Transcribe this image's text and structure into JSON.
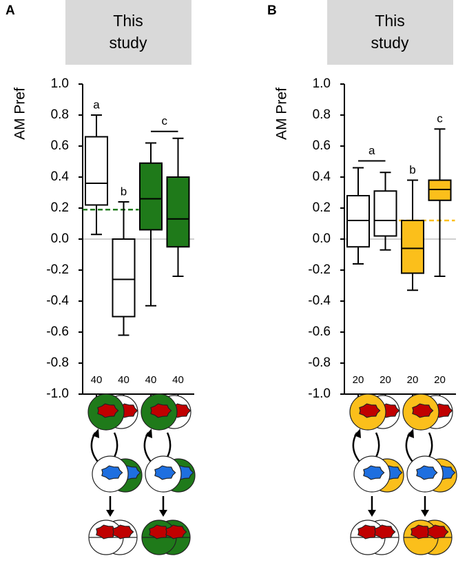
{
  "chart_data": [
    {
      "type": "box",
      "panel_label": "A",
      "header": "This study",
      "ylabel": "AM Pref",
      "ylim": [
        -1.0,
        1.0
      ],
      "yticks": [
        {
          "value": 1.0,
          "label": "1.0"
        },
        0.8,
        0.6,
        0.4,
        0.2,
        {
          "value": 0.0,
          "label": "0.0"
        },
        -0.2,
        -0.4,
        -0.6,
        -0.8,
        {
          "value": -1.0,
          "label": "-1.0"
        }
      ],
      "boxes": [
        {
          "color": "#ffffff",
          "whisker_low": 0.03,
          "q1": 0.22,
          "median": 0.36,
          "q3": 0.66,
          "whisker_high": 0.8,
          "n": 40
        },
        {
          "color": "#ffffff",
          "whisker_low": -0.62,
          "q1": -0.5,
          "median": -0.26,
          "q3": 0.0,
          "whisker_high": 0.24,
          "n": 40
        },
        {
          "color": "#1f7a1a",
          "whisker_low": -0.43,
          "q1": 0.06,
          "median": 0.26,
          "q3": 0.49,
          "whisker_high": 0.62,
          "n": 40
        },
        {
          "color": "#1f7a1a",
          "whisker_low": -0.24,
          "q1": -0.05,
          "median": 0.13,
          "q3": 0.4,
          "whisker_high": 0.65,
          "n": 40
        }
      ],
      "letters": [
        {
          "text": "a",
          "boxes": [
            0
          ]
        },
        {
          "text": "b",
          "boxes": [
            1
          ]
        },
        {
          "text": "c",
          "boxes": [
            2,
            3
          ]
        }
      ],
      "reference": {
        "value": 0.19,
        "color": "#1f7a1a",
        "boxes": [
          0,
          1
        ]
      }
    },
    {
      "type": "box",
      "panel_label": "B",
      "header": "This study",
      "ylabel": "AM Pref",
      "ylim": [
        -1.0,
        1.0
      ],
      "yticks": [
        {
          "value": 1.0,
          "label": "1.0"
        },
        0.8,
        0.6,
        0.4,
        0.2,
        {
          "value": 0.0,
          "label": "0.0"
        },
        -0.2,
        -0.4,
        -0.6,
        -0.8,
        {
          "value": -1.0,
          "label": "-1.0"
        }
      ],
      "boxes": [
        {
          "color": "#ffffff",
          "whisker_low": -0.16,
          "q1": -0.05,
          "median": 0.12,
          "q3": 0.28,
          "whisker_high": 0.46,
          "n": 20
        },
        {
          "color": "#ffffff",
          "whisker_low": -0.07,
          "q1": 0.02,
          "median": 0.12,
          "q3": 0.31,
          "whisker_high": 0.43,
          "n": 20
        },
        {
          "color": "#fbbf1b",
          "whisker_low": -0.33,
          "q1": -0.22,
          "median": -0.06,
          "q3": 0.12,
          "whisker_high": 0.38,
          "n": 20
        },
        {
          "color": "#fbbf1b",
          "whisker_low": -0.24,
          "q1": 0.25,
          "median": 0.32,
          "q3": 0.38,
          "whisker_high": 0.71,
          "n": 20
        }
      ],
      "letters": [
        {
          "text": "a",
          "boxes": [
            0,
            1
          ]
        },
        {
          "text": "b",
          "boxes": [
            2
          ]
        },
        {
          "text": "c",
          "boxes": [
            3
          ]
        }
      ],
      "reference": {
        "value": 0.12,
        "color": "#fbbf1b",
        "boxes": [
          2,
          3
        ]
      }
    }
  ]
}
